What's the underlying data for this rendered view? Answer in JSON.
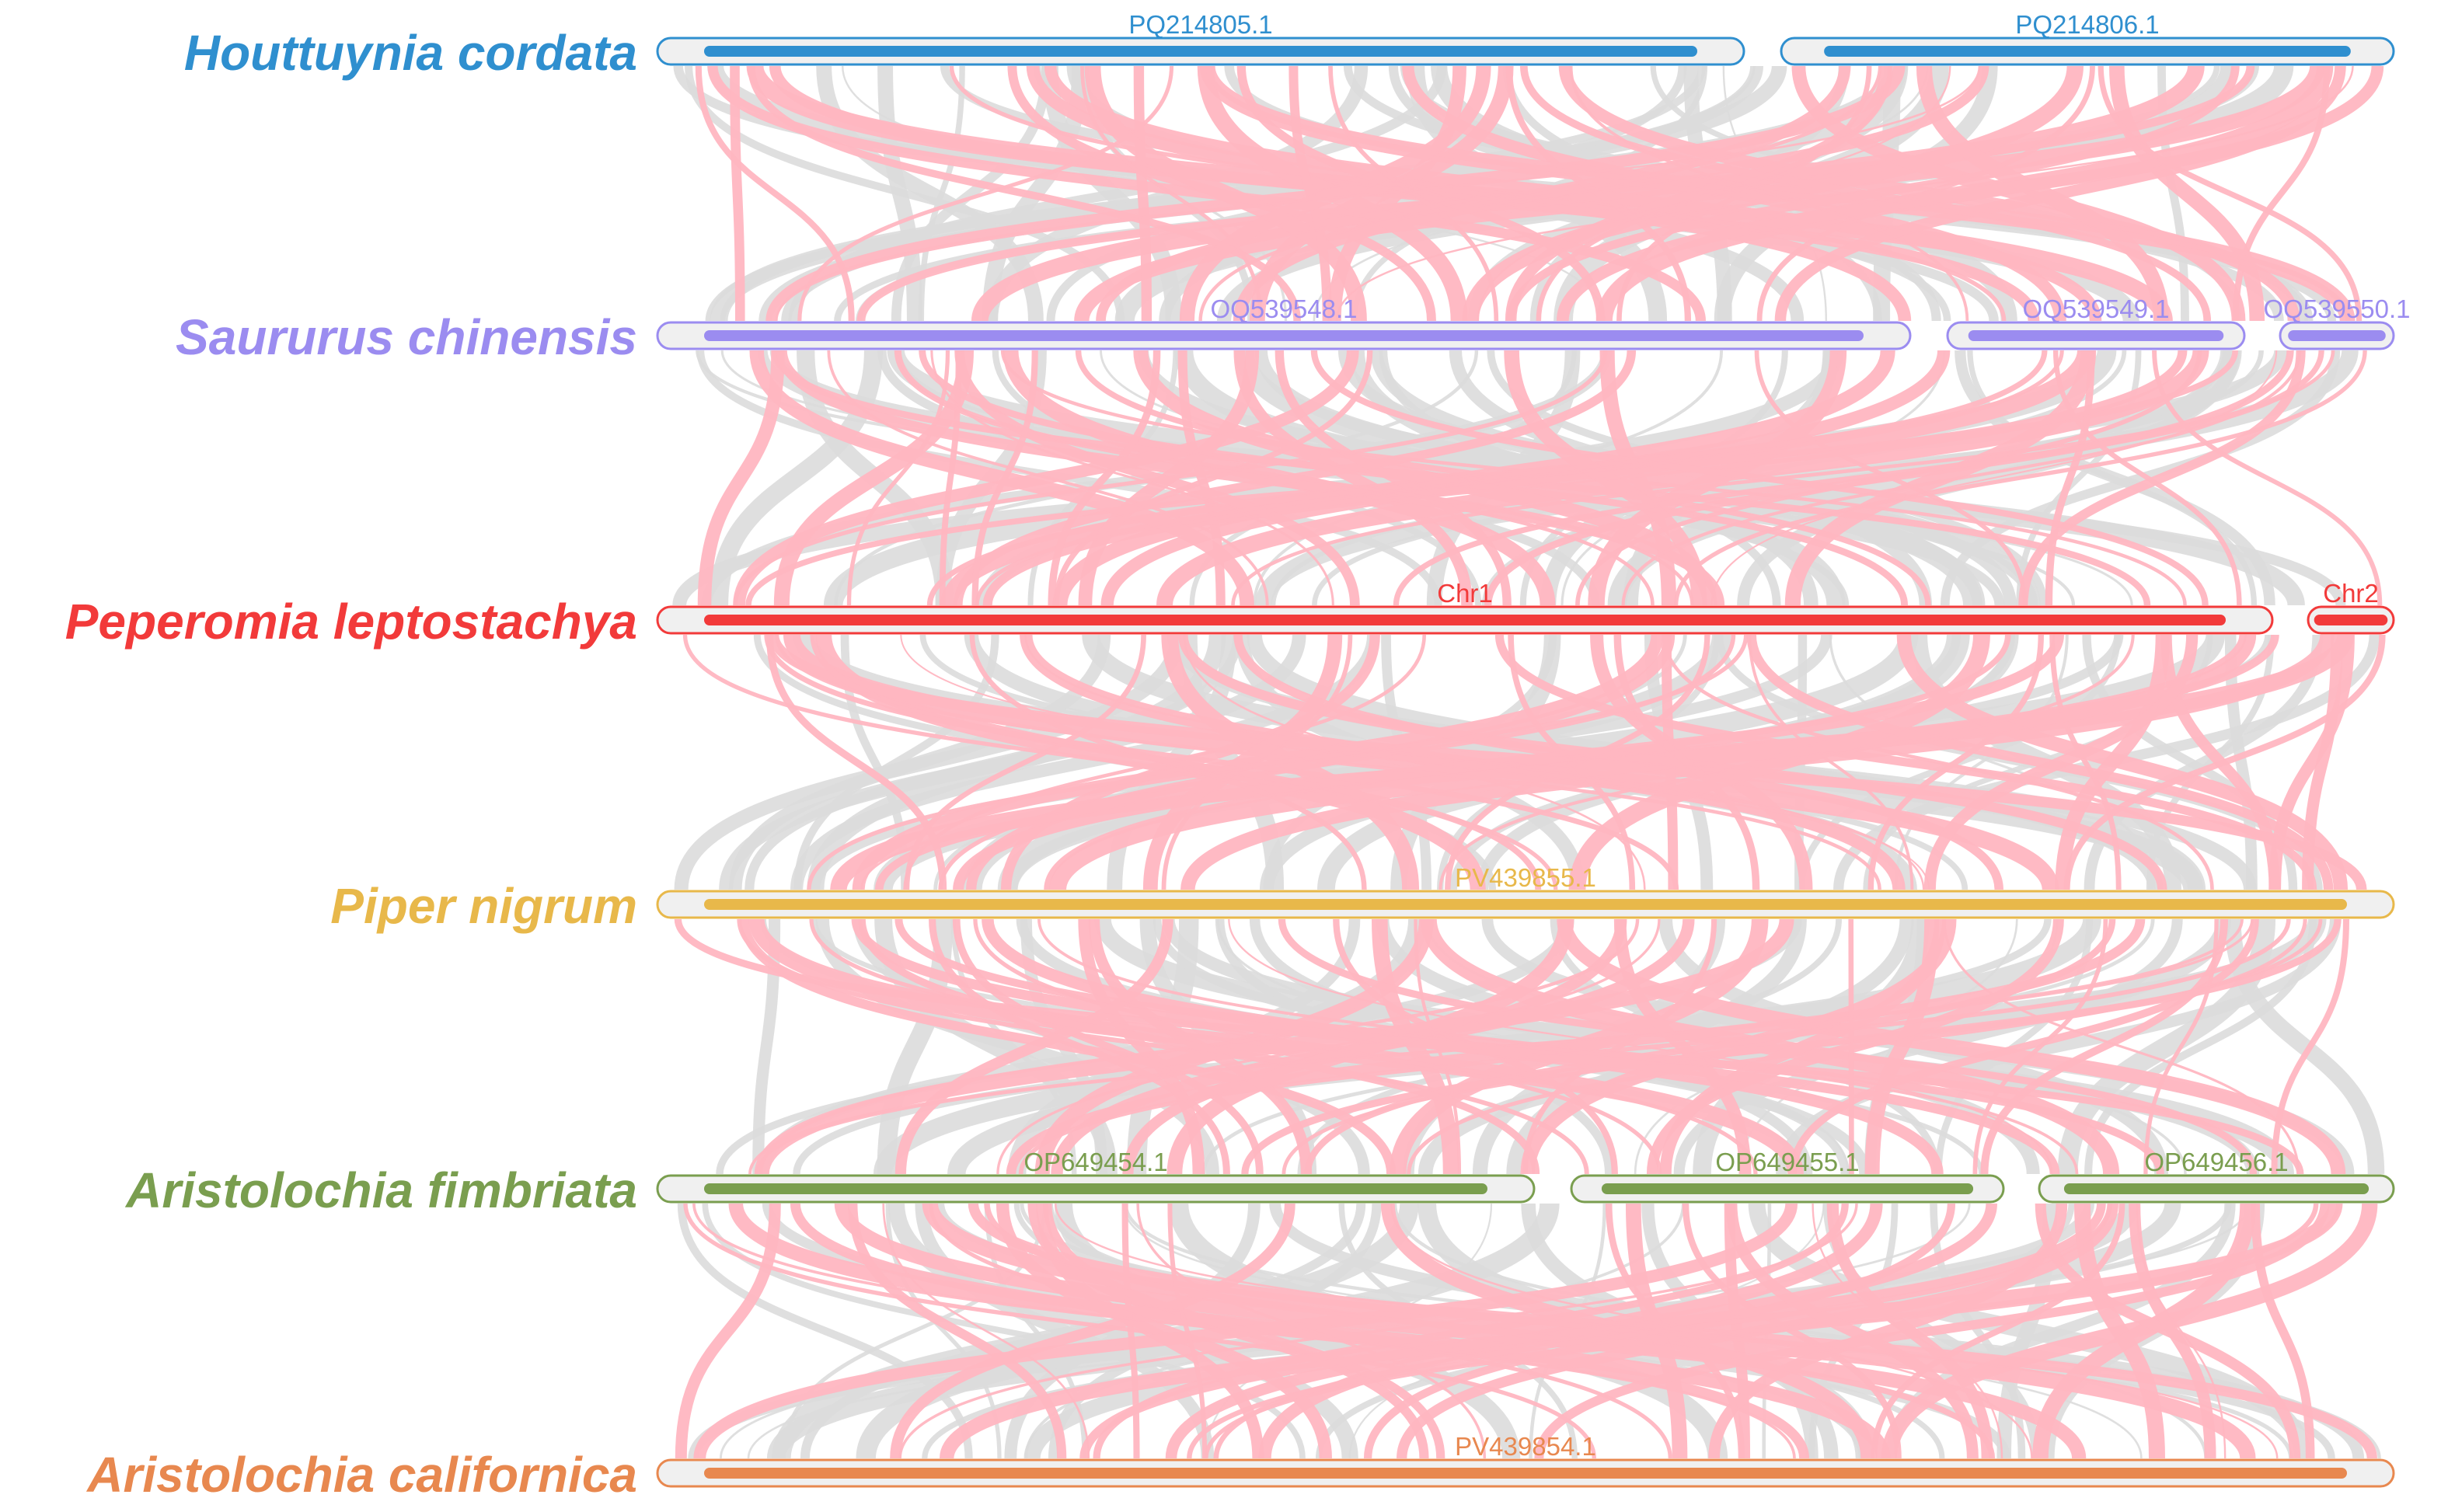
{
  "figure": {
    "link_colors": {
      "highlighted": "#ffb6c1",
      "background": "#dcdcdc"
    },
    "track_background": "#f0f0f0"
  },
  "tracks": [
    {
      "species": "Houttuynia cordata",
      "color": "#2f8fcf",
      "sequences": [
        {
          "name": "PQ214805.1"
        },
        {
          "name": "PQ214806.1"
        }
      ]
    },
    {
      "species": "Saururus chinensis",
      "color": "#9b8cf0",
      "sequences": [
        {
          "name": "OQ539548.1"
        },
        {
          "name": "OQ539549.1"
        },
        {
          "name": "OQ539550.1"
        }
      ]
    },
    {
      "species": "Peperomia leptostachya",
      "color": "#f23a3a",
      "sequences": [
        {
          "name": "Chr1"
        },
        {
          "name": "Chr2"
        }
      ]
    },
    {
      "species": "Piper nigrum",
      "color": "#e8b84a",
      "sequences": [
        {
          "name": "PV439855.1"
        }
      ]
    },
    {
      "species": "Aristolochia fimbriata",
      "color": "#7a9e4f",
      "sequences": [
        {
          "name": "OP649454.1"
        },
        {
          "name": "OP649455.1"
        },
        {
          "name": "OP649456.1"
        }
      ]
    },
    {
      "species": "Aristolochia californica",
      "color": "#e8884f",
      "sequences": [
        {
          "name": "PV439854.1"
        }
      ]
    }
  ]
}
